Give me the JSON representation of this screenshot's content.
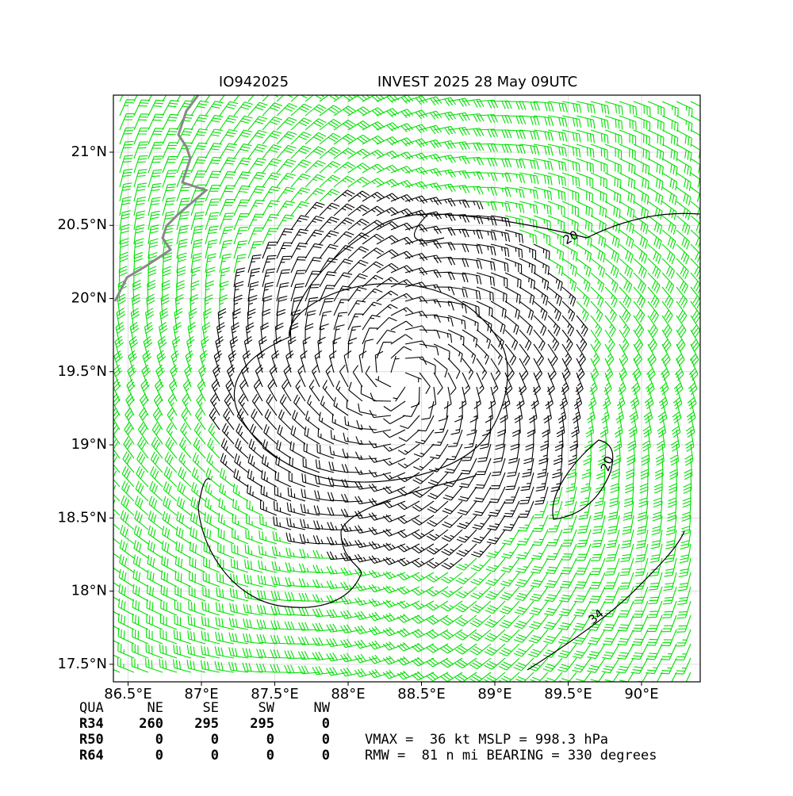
{
  "chart_data": {
    "type": "barb_map",
    "title_left": "IO942025",
    "title_right": "INVEST 2025 28 May 09UTC",
    "xlim": [
      86.4,
      90.4
    ],
    "ylim": [
      17.38,
      21.39
    ],
    "xticks": [
      {
        "value": 86.5,
        "label": "86.5°E"
      },
      {
        "value": 87,
        "label": "87°E"
      },
      {
        "value": 87.5,
        "label": "87.5°E"
      },
      {
        "value": 88,
        "label": "88°E"
      },
      {
        "value": 88.5,
        "label": "88.5°E"
      },
      {
        "value": 89,
        "label": "89°E"
      },
      {
        "value": 89.5,
        "label": "89.5°E"
      },
      {
        "value": 90,
        "label": "90°E"
      }
    ],
    "yticks": [
      {
        "value": 17.5,
        "label": "17.5°N"
      },
      {
        "value": 18,
        "label": "18°N"
      },
      {
        "value": 18.5,
        "label": "18.5°N"
      },
      {
        "value": 19,
        "label": "19°N"
      },
      {
        "value": 19.5,
        "label": "19.5°N"
      },
      {
        "value": 20,
        "label": "20°N"
      },
      {
        "value": 20.5,
        "label": "20.5°N"
      },
      {
        "value": 21,
        "label": "21°N"
      }
    ],
    "grid": true,
    "center": [
      88.35,
      19.45
    ],
    "profile": {
      "radius_deg": [
        0,
        0.5,
        1,
        1.5,
        2,
        2.5,
        3
      ],
      "speed_kt": [
        5,
        15,
        22,
        27,
        30,
        28,
        25
      ]
    },
    "speed_colors": [
      {
        "min": 0,
        "color": "#000000"
      },
      {
        "min": 25,
        "color": "#00e000"
      },
      {
        "min": 34,
        "color": "#f4b400"
      }
    ],
    "contour_labels": [
      "20",
      "34",
      "20"
    ],
    "radii_table": {
      "header": [
        "QUA",
        "NE",
        "SE",
        "SW",
        "NW"
      ],
      "rows": [
        [
          "R34",
          260,
          295,
          295,
          0
        ],
        [
          "R50",
          0,
          0,
          0,
          0
        ],
        [
          "R64",
          0,
          0,
          0,
          0
        ]
      ]
    },
    "info": [
      "VMAX =  36 kt MSLP = 998.3 hPa",
      "RMW =  81 n mi BEARING = 330 degrees"
    ]
  }
}
